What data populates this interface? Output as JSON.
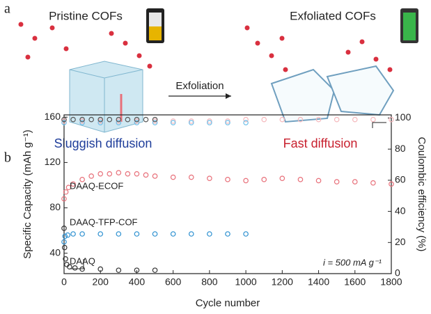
{
  "panel_a": {
    "label": "a",
    "left_title": "Pristine COFs",
    "right_title": "Exfoliated COFs",
    "process": "Exfoliation",
    "left_caption": "Sluggish diffusion",
    "right_caption": "Fast diffusion"
  },
  "chart_data": {
    "type": "scatter",
    "panel_label": "b",
    "xlabel": "Cycle number",
    "ylabel": "Specific Capacity (mAh g⁻¹)",
    "y2label": "Coulombic efficiency (%)",
    "annotation": "i = 500 mA g⁻¹",
    "xlim": [
      0,
      1800
    ],
    "xticks": [
      0,
      200,
      400,
      600,
      800,
      1000,
      1200,
      1400,
      1600,
      1800
    ],
    "ylim": [
      22,
      162
    ],
    "yticks": [
      40,
      80,
      120,
      160
    ],
    "y2lim": [
      0,
      102
    ],
    "y2ticks": [
      0,
      20,
      40,
      60,
      80,
      100
    ],
    "series": [
      {
        "name": "DAAQ-ECOF",
        "color": "#e8707a",
        "x": [
          0,
          10,
          25,
          50,
          100,
          150,
          200,
          250,
          300,
          350,
          400,
          450,
          500,
          600,
          700,
          800,
          900,
          1000,
          1100,
          1200,
          1300,
          1400,
          1500,
          1600,
          1700,
          1800
        ],
        "values": [
          88,
          94,
          98,
          101,
          105,
          108,
          110,
          110,
          111,
          110,
          110,
          109,
          108,
          107,
          107,
          106,
          105,
          104,
          105,
          106,
          105,
          104,
          103,
          103,
          102,
          101
        ]
      },
      {
        "color": "#f5b8bc",
        "axis": "y2",
        "x": [
          0,
          100,
          200,
          300,
          400,
          500,
          600,
          700,
          800,
          900,
          1000,
          1100,
          1200,
          1300,
          1400,
          1500,
          1600,
          1700,
          1800
        ],
        "values": [
          98,
          98,
          98,
          98,
          98,
          98,
          98,
          98,
          98,
          98,
          99,
          99,
          99,
          99,
          99,
          99,
          99,
          99,
          99
        ]
      },
      {
        "name": "DAAQ-TFP-COF",
        "color": "#2a8fd0",
        "x": [
          0,
          5,
          20,
          50,
          100,
          200,
          300,
          400,
          500,
          600,
          700,
          800,
          900,
          1000
        ],
        "values": [
          50,
          55,
          56,
          57,
          57,
          57,
          57,
          57,
          57,
          57,
          57,
          57,
          57,
          57
        ]
      },
      {
        "color": "#6fc0ea",
        "axis": "y2",
        "x": [
          0,
          100,
          200,
          300,
          400,
          500,
          600,
          700,
          800,
          900,
          1000
        ],
        "values": [
          97,
          97,
          97,
          97,
          97,
          97,
          97,
          97,
          97,
          97,
          97
        ]
      },
      {
        "name": "DAAQ",
        "color": "#333333",
        "x": [
          0,
          3,
          8,
          15,
          30,
          60,
          100,
          200,
          300,
          400,
          500
        ],
        "values": [
          62,
          45,
          35,
          30,
          28,
          27,
          26,
          26,
          25,
          25,
          25
        ]
      },
      {
        "color": "#555555",
        "axis": "y2",
        "x": [
          0,
          50,
          100,
          150,
          200,
          250,
          300,
          350,
          400,
          450,
          500
        ],
        "values": [
          99,
          99,
          99,
          99,
          99,
          99,
          99,
          99,
          99,
          99,
          99
        ]
      }
    ]
  }
}
